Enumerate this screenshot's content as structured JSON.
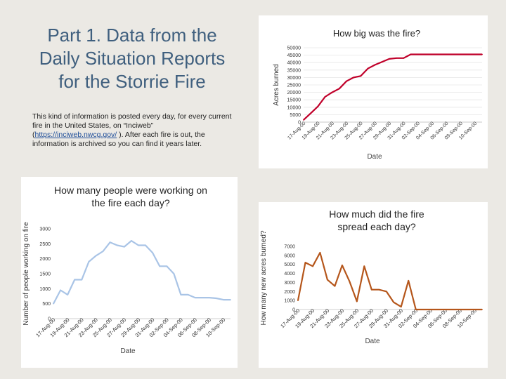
{
  "slide": {
    "title": "Part 1. Data from the Daily Situation Reports for the Storrie Fire",
    "intro_before": "This kind of information is posted every day, for every current fire in the United States, on “Inciweb” (",
    "intro_link": "https://inciweb.nwcg.gov/",
    "intro_after": " ). After each fire is out, the information is archived so you can find it years later."
  },
  "chart_data": [
    {
      "id": "acres",
      "type": "line",
      "title": "How big was the fire?",
      "xlabel": "Date",
      "ylabel": "Acres burned",
      "ylim": [
        0,
        50000
      ],
      "yticks": [
        0,
        5000,
        10000,
        15000,
        20000,
        25000,
        30000,
        35000,
        40000,
        45000,
        50000
      ],
      "xticks": [
        "17-Aug-00",
        "19-Aug-00",
        "21-Aug-00",
        "23-Aug-00",
        "25-Aug-00",
        "27-Aug-00",
        "29-Aug-00",
        "31-Aug-00",
        "02-Sep-00",
        "04-Sep-00",
        "06-Sep-00",
        "08-Sep-00",
        "10-Sep-00"
      ],
      "color": "#c0002a",
      "x": [
        0,
        1,
        2,
        3,
        4,
        5,
        6,
        7,
        8,
        9,
        10,
        11,
        12,
        13,
        14,
        15,
        16,
        17,
        18,
        19,
        20,
        21,
        22,
        23,
        24,
        25
      ],
      "values": [
        1500,
        6000,
        10500,
        17000,
        20000,
        22500,
        27500,
        30000,
        31000,
        36000,
        38500,
        40500,
        42500,
        43000,
        43000,
        45500,
        45500,
        45500,
        45500,
        45500,
        45500,
        45500,
        45500,
        45500,
        45500,
        45500
      ]
    },
    {
      "id": "people",
      "type": "line",
      "title": "How many people were working on the fire each day?",
      "xlabel": "Date",
      "ylabel": "Number of people working on fire",
      "ylim": [
        0,
        3000
      ],
      "yticks": [
        0,
        500,
        1000,
        1500,
        2000,
        2500,
        3000
      ],
      "xticks": [
        "17-Aug-00",
        "19-Aug-00",
        "21-Aug-00",
        "23-Aug-00",
        "25-Aug-00",
        "27-Aug-00",
        "29-Aug-00",
        "31-Aug-00",
        "02-Sep-00",
        "04-Sep-00",
        "06-Sep-00",
        "08-Sep-00",
        "10-Sep-00"
      ],
      "color": "#a9c4e6",
      "x": [
        0,
        1,
        2,
        3,
        4,
        5,
        6,
        7,
        8,
        9,
        10,
        11,
        12,
        13,
        14,
        15,
        16,
        17,
        18,
        19,
        20,
        21,
        22,
        23,
        24,
        25
      ],
      "values": [
        500,
        950,
        800,
        1300,
        1300,
        1900,
        2100,
        2250,
        2550,
        2450,
        2400,
        2600,
        2450,
        2450,
        2200,
        1750,
        1750,
        1500,
        800,
        800,
        700,
        700,
        700,
        680,
        630,
        630
      ]
    },
    {
      "id": "spread",
      "type": "line",
      "title": "How much did the fire spread each day?",
      "xlabel": "Date",
      "ylabel": "How many new acres burned?",
      "ylim": [
        0,
        7000
      ],
      "yticks": [
        0,
        1000,
        2000,
        3000,
        4000,
        5000,
        6000,
        7000
      ],
      "xticks": [
        "17-Aug-00",
        "19-Aug-00",
        "21-Aug-00",
        "23-Aug-00",
        "25-Aug-00",
        "27-Aug-00",
        "29-Aug-00",
        "31-Aug-00",
        "02-Sep-00",
        "04-Sep-00",
        "06-Sep-00",
        "08-Sep-00",
        "10-Sep-00"
      ],
      "color": "#b5561b",
      "x": [
        0,
        1,
        2,
        3,
        4,
        5,
        6,
        7,
        8,
        9,
        10,
        11,
        12,
        13,
        14,
        15,
        16,
        17,
        18,
        19,
        20,
        21,
        22,
        23,
        24,
        25
      ],
      "values": [
        1000,
        5200,
        4800,
        6300,
        3300,
        2600,
        4900,
        3100,
        900,
        4800,
        2200,
        2200,
        2000,
        800,
        300,
        3200,
        0,
        0,
        0,
        0,
        0,
        0,
        0,
        0,
        0,
        0
      ]
    }
  ]
}
